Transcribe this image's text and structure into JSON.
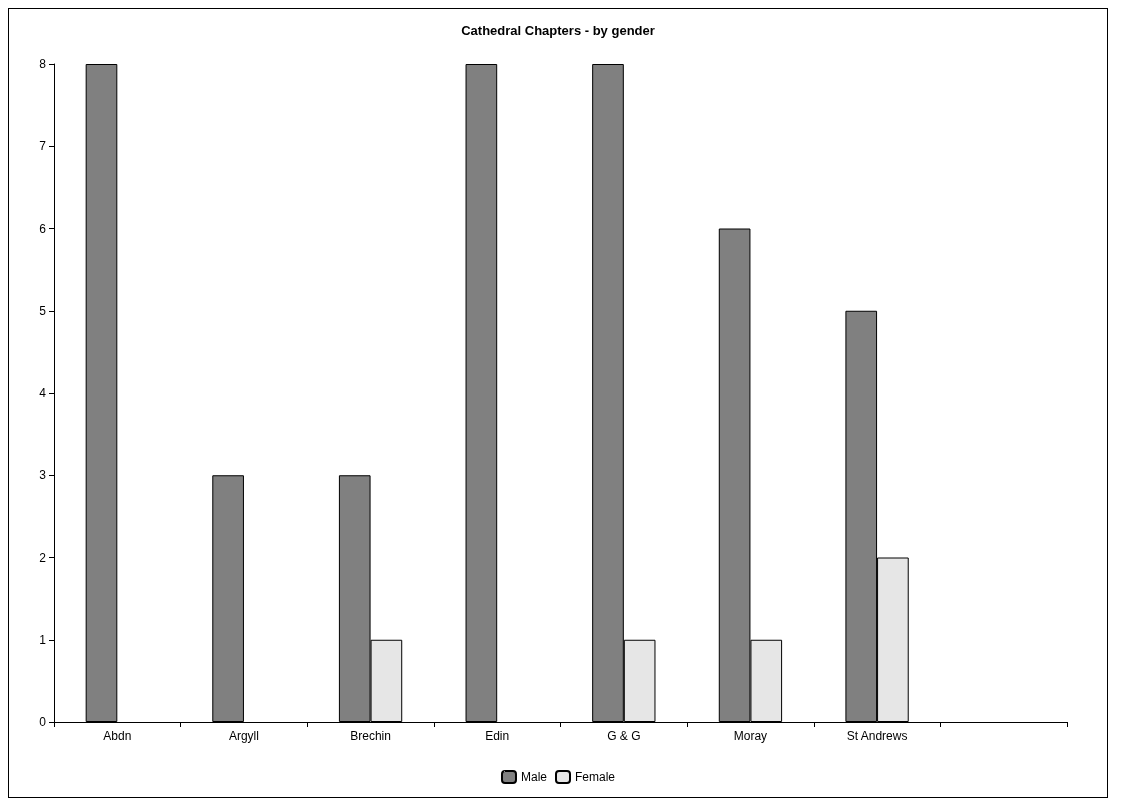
{
  "chart_data": {
    "type": "bar",
    "title": "Cathedral Chapters - by gender",
    "categories": [
      "Abdn",
      "Argyll",
      "Brechin",
      "Edin",
      "G & G",
      "Moray",
      "St Andrews",
      null
    ],
    "series": [
      {
        "name": "Male",
        "color": "#808080",
        "values": [
          8,
          3,
          3,
          8,
          8,
          6,
          5,
          null
        ]
      },
      {
        "name": "Female",
        "color": "#e6e6e6",
        "values": [
          0,
          0,
          1,
          0,
          1,
          1,
          2,
          null
        ]
      }
    ],
    "ylim": [
      0,
      8
    ],
    "yticks": [
      0,
      1,
      2,
      3,
      4,
      5,
      6,
      7,
      8
    ],
    "grid": false,
    "legend": "bottom"
  }
}
